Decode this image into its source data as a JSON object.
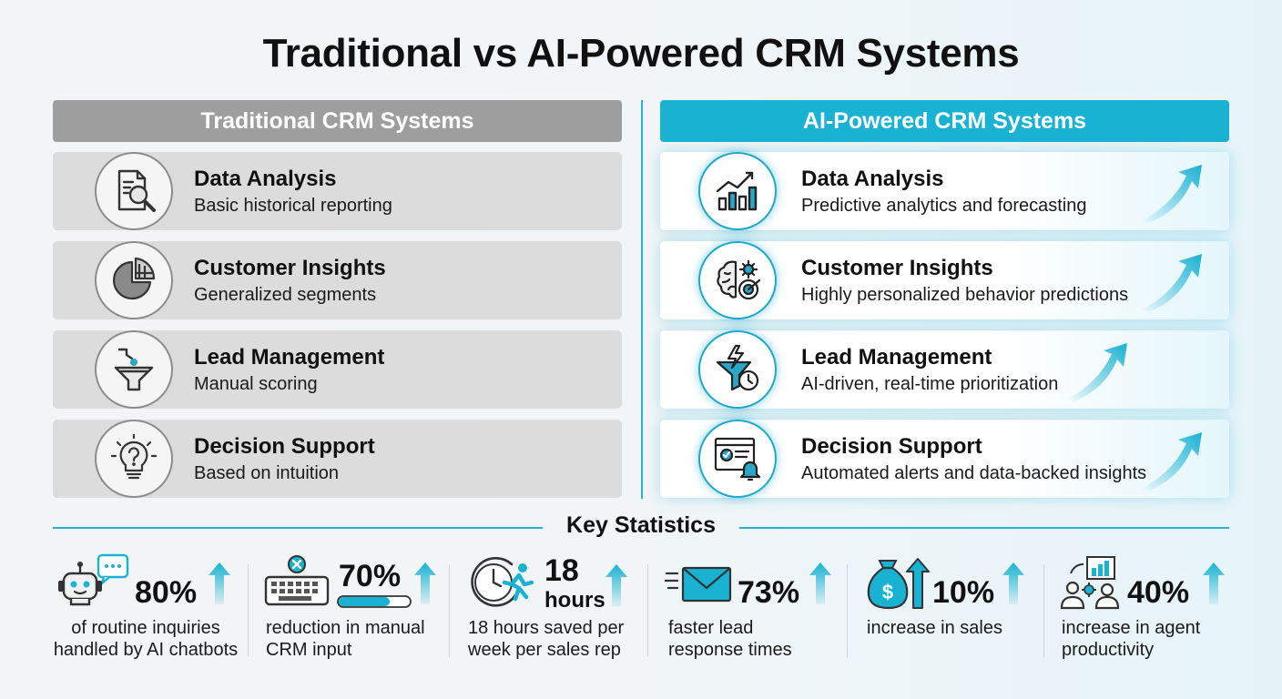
{
  "title": "Traditional vs AI-Powered CRM Systems",
  "traditional": {
    "header": "Traditional CRM Systems",
    "rows": [
      {
        "title": "Data Analysis",
        "desc": "Basic historical reporting",
        "icon": "report-magnifier-icon"
      },
      {
        "title": "Customer Insights",
        "desc": "Generalized segments",
        "icon": "pie-chart-icon"
      },
      {
        "title": "Lead Management",
        "desc": "Manual scoring",
        "icon": "funnel-icon"
      },
      {
        "title": "Decision Support",
        "desc": "Based on intuition",
        "icon": "lightbulb-question-icon"
      }
    ]
  },
  "ai": {
    "header": "AI-Powered CRM Systems",
    "rows": [
      {
        "title": "Data Analysis",
        "desc": "Predictive analytics and forecasting",
        "icon": "bar-chart-trend-icon"
      },
      {
        "title": "Customer Insights",
        "desc": "Highly personalized behavior predictions",
        "icon": "brain-gear-target-icon"
      },
      {
        "title": "Lead Management",
        "desc": "AI-driven, real-time prioritization",
        "icon": "lightning-funnel-clock-icon"
      },
      {
        "title": "Decision Support",
        "desc": "Automated alerts and data-backed insights",
        "icon": "dashboard-bell-icon"
      }
    ]
  },
  "stats": {
    "title": "Key Statistics",
    "items": [
      {
        "value": "80%",
        "desc": [
          "of routine inquiries",
          "handled by AI chatbots"
        ],
        "icon": "chatbot-icon"
      },
      {
        "value": "70%",
        "desc": [
          "reduction in manual",
          "CRM input"
        ],
        "icon": "keyboard-cancel-icon"
      },
      {
        "value": "18",
        "value_unit": "hours",
        "desc": [
          "18 hours saved per",
          "week per sales rep"
        ],
        "icon": "clock-runner-icon"
      },
      {
        "value": "73%",
        "desc": [
          "faster lead",
          "response times"
        ],
        "icon": "fast-envelope-icon"
      },
      {
        "value": "10%",
        "desc": [
          "increase in sales"
        ],
        "icon": "money-bag-icon"
      },
      {
        "value": "40%",
        "desc": [
          "increase in agent",
          "productivity"
        ],
        "icon": "team-chart-icon"
      }
    ]
  },
  "colors": {
    "accent": "#1ab2d2",
    "gray_header": "#9e9e9e",
    "gray_row": "#dcdcdc"
  }
}
